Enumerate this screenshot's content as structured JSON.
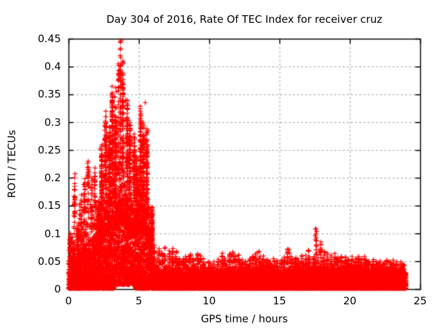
{
  "chart_data": {
    "type": "scatter",
    "title": "Day 304 of 2016, Rate Of TEC Index for receiver cruz",
    "xlabel": "GPS time / hours",
    "ylabel": "ROTI / TECUs",
    "xlim": [
      0,
      25
    ],
    "ylim": [
      0,
      0.45
    ],
    "xtick_values": [
      0,
      5,
      10,
      15,
      20,
      25
    ],
    "xtick_labels": [
      "0",
      "5",
      "10",
      "15",
      "20",
      "25"
    ],
    "ytick_values": [
      0,
      0.05,
      0.1,
      0.15,
      0.2,
      0.25,
      0.3,
      0.35,
      0.4,
      0.45
    ],
    "ytick_labels": [
      "0",
      "0.05",
      "0.1",
      "0.15",
      "0.2",
      "0.25",
      "0.3",
      "0.35",
      "0.4",
      "0.45"
    ],
    "grid": true,
    "grid_color": "#a0a0a0",
    "grid_dash": [
      3,
      3
    ],
    "axis_color": "#000000",
    "text_color": "#000000",
    "background_color": "#ffffff",
    "marker_shape": "plus",
    "marker_color": "#ff0000",
    "marker_size": 7,
    "legend": "none",
    "data_start_hour": 0,
    "data_end_hour": 24,
    "bin_hours": 0.25,
    "envelope_max": [
      0.1,
      0.21,
      0.12,
      0.17,
      0.21,
      0.25,
      0.2,
      0.23,
      0.16,
      0.26,
      0.32,
      0.3,
      0.37,
      0.33,
      0.447,
      0.41,
      0.34,
      0.3,
      0.28,
      0.24,
      0.33,
      0.3,
      0.29,
      0.15,
      0.08,
      0.075,
      0.07,
      0.075,
      0.07,
      0.075,
      0.072,
      0.06,
      0.055,
      0.06,
      0.065,
      0.06,
      0.065,
      0.06,
      0.055,
      0.05,
      0.048,
      0.052,
      0.055,
      0.065,
      0.06,
      0.065,
      0.068,
      0.06,
      0.062,
      0.055,
      0.052,
      0.058,
      0.06,
      0.065,
      0.068,
      0.06,
      0.062,
      0.055,
      0.06,
      0.052,
      0.055,
      0.06,
      0.072,
      0.06,
      0.06,
      0.055,
      0.06,
      0.065,
      0.07,
      0.065,
      0.11,
      0.085,
      0.07,
      0.065,
      0.062,
      0.065,
      0.06,
      0.065,
      0.065,
      0.06,
      0.06,
      0.055,
      0.06,
      0.055,
      0.06,
      0.055,
      0.055,
      0.05,
      0.055,
      0.05,
      0.055,
      0.05,
      0.055,
      0.05,
      0.05,
      0.048
    ],
    "base_band_top": [
      0.045,
      0.05,
      0.045,
      0.055,
      0.06,
      0.065,
      0.06,
      0.075,
      0.08,
      0.09,
      0.1,
      0.1,
      0.11,
      0.11,
      0.12,
      0.12,
      0.11,
      0.1,
      0.095,
      0.1,
      0.11,
      0.1,
      0.08,
      0.05,
      0.035,
      0.033,
      0.03,
      0.034,
      0.032,
      0.036,
      0.034,
      0.03,
      0.028,
      0.03,
      0.032,
      0.03,
      0.033,
      0.03,
      0.028,
      0.027,
      0.026,
      0.028,
      0.03,
      0.033,
      0.03,
      0.032,
      0.034,
      0.031,
      0.032,
      0.029,
      0.028,
      0.03,
      0.031,
      0.033,
      0.034,
      0.031,
      0.032,
      0.029,
      0.031,
      0.028,
      0.029,
      0.031,
      0.034,
      0.031,
      0.031,
      0.029,
      0.031,
      0.033,
      0.035,
      0.033,
      0.038,
      0.036,
      0.035,
      0.034,
      0.033,
      0.034,
      0.032,
      0.034,
      0.035,
      0.033,
      0.034,
      0.032,
      0.033,
      0.031,
      0.033,
      0.031,
      0.031,
      0.029,
      0.031,
      0.029,
      0.03,
      0.028,
      0.03,
      0.028,
      0.029,
      0.027
    ],
    "peaks": [
      {
        "x": 3.74,
        "y": 0.447
      },
      {
        "x": 3.55,
        "y": 0.405
      },
      {
        "x": 3.62,
        "y": 0.392
      },
      {
        "x": 3.58,
        "y": 0.383
      },
      {
        "x": 3.35,
        "y": 0.362
      },
      {
        "x": 3.42,
        "y": 0.355
      },
      {
        "x": 3.3,
        "y": 0.345
      },
      {
        "x": 4.05,
        "y": 0.34
      },
      {
        "x": 5.45,
        "y": 0.335
      },
      {
        "x": 3.37,
        "y": 0.325
      },
      {
        "x": 3.1,
        "y": 0.315
      },
      {
        "x": 2.62,
        "y": 0.302
      },
      {
        "x": 5.15,
        "y": 0.3
      },
      {
        "x": 4.35,
        "y": 0.295
      },
      {
        "x": 5.65,
        "y": 0.285
      },
      {
        "x": 2.55,
        "y": 0.268
      },
      {
        "x": 4.52,
        "y": 0.262
      },
      {
        "x": 2.25,
        "y": 0.252
      },
      {
        "x": 17.55,
        "y": 0.108
      },
      {
        "x": 17.58,
        "y": 0.099
      },
      {
        "x": 15.68,
        "y": 0.071
      },
      {
        "x": 7.42,
        "y": 0.073
      },
      {
        "x": 11.48,
        "y": 0.063
      },
      {
        "x": 13.42,
        "y": 0.066
      }
    ]
  }
}
